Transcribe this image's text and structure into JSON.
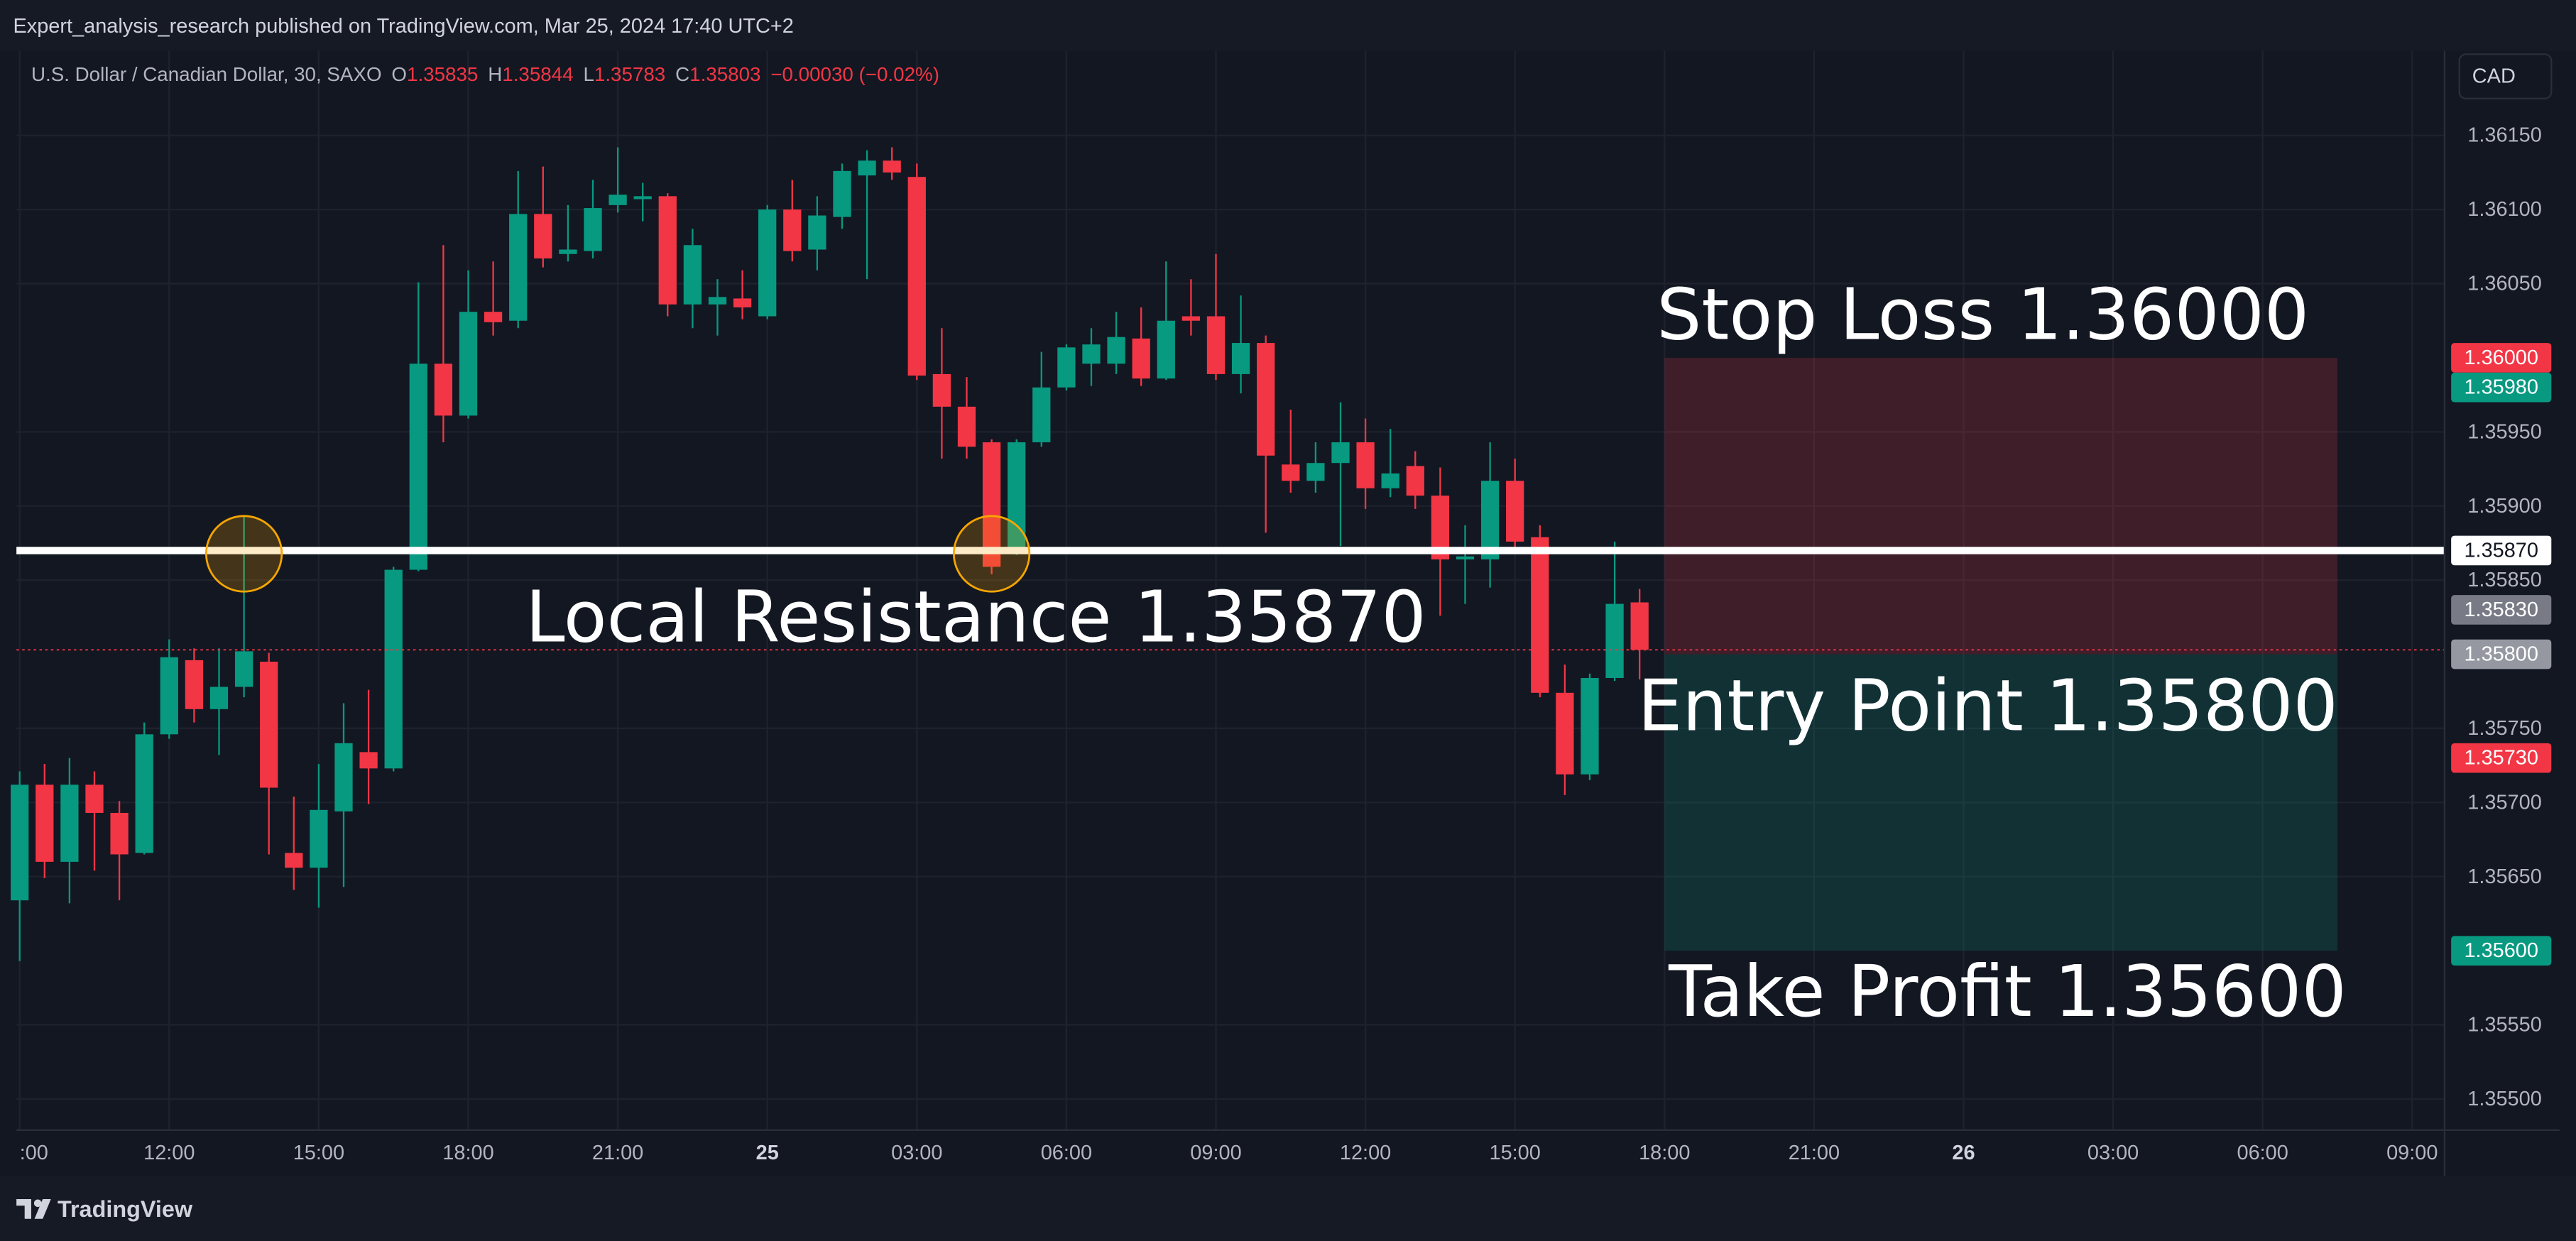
{
  "header": {
    "publisher": "Expert_analysis_research published on TradingView.com, Mar 25, 2024 17:40 UTC+2",
    "currency": "CAD",
    "brand": "TradingView"
  },
  "chart_data": {
    "type": "candlestick",
    "symbol": "U.S. Dollar / Canadian Dollar, 30, SAXO",
    "ohlc_labels": [
      "O",
      "H",
      "L",
      "C"
    ],
    "change": "−0.00030 (−0.02%)",
    "up_color": "#089981",
    "down_color": "#f23645",
    "x": [
      0,
      1,
      2,
      3,
      4,
      5,
      6,
      7,
      8,
      9,
      10,
      11,
      12,
      13,
      14,
      15,
      16,
      17,
      18,
      19,
      20,
      21,
      22,
      23,
      24,
      25,
      26,
      27,
      28,
      29,
      30,
      31,
      32,
      33,
      34,
      35,
      36,
      37,
      38,
      39,
      40,
      41,
      42,
      43,
      44,
      45,
      46,
      47,
      48,
      49,
      50,
      51,
      52,
      53,
      54,
      55,
      56,
      57,
      58,
      59,
      60,
      61,
      62,
      63,
      64,
      65
    ],
    "open": [
      1.35634,
      1.35712,
      1.3566,
      1.35712,
      1.35693,
      1.35666,
      1.35746,
      1.35796,
      1.35763,
      1.35778,
      1.35795,
      1.35666,
      1.35656,
      1.35694,
      1.35734,
      1.35723,
      1.35857,
      1.35996,
      1.35961,
      1.36031,
      1.36025,
      1.36097,
      1.3607,
      1.36072,
      1.36103,
      1.36107,
      1.36109,
      1.36036,
      1.36036,
      1.3604,
      1.36028,
      1.361,
      1.36073,
      1.36095,
      1.36123,
      1.36133,
      1.36122,
      1.35989,
      1.35967,
      1.35943,
      1.3587,
      1.35943,
      1.3598,
      1.35996,
      1.35996,
      1.36013,
      1.35986,
      1.36028,
      1.36028,
      1.35989,
      1.3601,
      1.35928,
      1.35917,
      1.35929,
      1.35943,
      1.35912,
      1.35927,
      1.35907,
      1.35864,
      1.35864,
      1.35917,
      1.35879,
      1.35774,
      1.35719,
      1.35784,
      1.35835
    ],
    "high": [
      1.35721,
      1.35726,
      1.3573,
      1.35721,
      1.35701,
      1.35754,
      1.3581,
      1.35804,
      1.35804,
      1.35893,
      1.35801,
      1.35704,
      1.35726,
      1.35767,
      1.35776,
      1.35859,
      1.36051,
      1.36076,
      1.36059,
      1.36065,
      1.36126,
      1.36129,
      1.36103,
      1.3612,
      1.36142,
      1.36118,
      1.36111,
      1.36087,
      1.36053,
      1.36059,
      1.36103,
      1.3612,
      1.36109,
      1.36131,
      1.3614,
      1.36142,
      1.36131,
      1.3602,
      1.35987,
      1.35945,
      1.35945,
      1.36004,
      1.36009,
      1.3602,
      1.36031,
      1.36034,
      1.36065,
      1.36053,
      1.3607,
      1.36042,
      1.36015,
      1.35965,
      1.35943,
      1.3597,
      1.35959,
      1.35952,
      1.35937,
      1.35926,
      1.35887,
      1.35943,
      1.35932,
      1.35887,
      1.35793,
      1.35787,
      1.35876,
      1.35844
    ],
    "low": [
      1.35593,
      1.35649,
      1.35632,
      1.35654,
      1.35634,
      1.35665,
      1.35743,
      1.35754,
      1.35732,
      1.35771,
      1.35665,
      1.35641,
      1.35629,
      1.35643,
      1.35699,
      1.35721,
      1.35856,
      1.35943,
      1.35959,
      1.36015,
      1.3602,
      1.36061,
      1.36065,
      1.36067,
      1.36098,
      1.36092,
      1.36028,
      1.3602,
      1.36015,
      1.36026,
      1.36026,
      1.36065,
      1.36059,
      1.36087,
      1.36053,
      1.3612,
      1.35985,
      1.35932,
      1.35932,
      1.35854,
      1.35867,
      1.3594,
      1.35978,
      1.35981,
      1.35989,
      1.35981,
      1.35985,
      1.36015,
      1.35985,
      1.35976,
      1.35882,
      1.35909,
      1.35909,
      1.35873,
      1.35898,
      1.35906,
      1.35898,
      1.35826,
      1.35834,
      1.35845,
      1.3587,
      1.35771,
      1.35705,
      1.35715,
      1.35782,
      1.35783
    ],
    "close": [
      1.35712,
      1.3566,
      1.35712,
      1.35693,
      1.35665,
      1.35746,
      1.35798,
      1.35763,
      1.35778,
      1.35802,
      1.3571,
      1.35656,
      1.35695,
      1.3574,
      1.35723,
      1.35857,
      1.35996,
      1.35961,
      1.36031,
      1.36024,
      1.36097,
      1.36067,
      1.36073,
      1.36101,
      1.3611,
      1.36109,
      1.36036,
      1.36076,
      1.36041,
      1.36034,
      1.361,
      1.36072,
      1.36096,
      1.36126,
      1.36133,
      1.36125,
      1.35988,
      1.35967,
      1.3594,
      1.35859,
      1.35943,
      1.3598,
      1.36007,
      1.36009,
      1.36014,
      1.35986,
      1.36025,
      1.36025,
      1.35989,
      1.3601,
      1.35934,
      1.35917,
      1.35929,
      1.35943,
      1.35912,
      1.35922,
      1.35907,
      1.35864,
      1.35866,
      1.35917,
      1.35876,
      1.35774,
      1.35719,
      1.35784,
      1.35834,
      1.35803
    ],
    "xlim": [
      -0.13,
      97.3
    ],
    "xticks": [
      {
        "value": 0,
        "label": ":00"
      },
      {
        "value": 6,
        "label": "12:00"
      },
      {
        "value": 12,
        "label": "15:00"
      },
      {
        "value": 18,
        "label": "18:00"
      },
      {
        "value": 24,
        "label": "21:00"
      },
      {
        "value": 30,
        "label": "25"
      },
      {
        "value": 36,
        "label": "03:00"
      },
      {
        "value": 42,
        "label": "06:00"
      },
      {
        "value": 48,
        "label": "09:00"
      },
      {
        "value": 54,
        "label": "12:00"
      },
      {
        "value": 60,
        "label": "15:00"
      },
      {
        "value": 66,
        "label": "18:00"
      },
      {
        "value": 72,
        "label": "21:00"
      },
      {
        "value": 78,
        "label": "26"
      },
      {
        "value": 84,
        "label": "03:00"
      },
      {
        "value": 90,
        "label": "06:00"
      },
      {
        "value": 96,
        "label": "09:00"
      }
    ],
    "ylim": [
      1.35479,
      1.36207
    ],
    "yticks": [
      {
        "value": 1.3615,
        "label": "1.36150"
      },
      {
        "value": 1.361,
        "label": "1.36100"
      },
      {
        "value": 1.3605,
        "label": "1.36050"
      },
      {
        "value": 1.3595,
        "label": "1.35950"
      },
      {
        "value": 1.359,
        "label": "1.35900"
      },
      {
        "value": 1.3585,
        "label": "1.35850"
      },
      {
        "value": 1.3575,
        "label": "1.35750"
      },
      {
        "value": 1.357,
        "label": "1.35700"
      },
      {
        "value": 1.3565,
        "label": "1.35650"
      },
      {
        "value": 1.3555,
        "label": "1.35550"
      },
      {
        "value": 1.355,
        "label": "1.35500"
      }
    ],
    "grid": true,
    "price_labels": [
      {
        "value": 1.36,
        "label": "1.36000",
        "color": "#f23645"
      },
      {
        "value": 1.3598,
        "label": "1.35980",
        "color": "#089981"
      },
      {
        "value": 1.3587,
        "label": "1.35870",
        "color": "#ffffff"
      },
      {
        "value": 1.3583,
        "label": "1.35830",
        "color": "#787b86"
      },
      {
        "value": 1.358,
        "label": "1.35800",
        "color": "#9598a1"
      },
      {
        "value": 1.3573,
        "label": "1.35730",
        "color": "#f23645"
      },
      {
        "value": 1.356,
        "label": "1.35600",
        "color": "#089981"
      }
    ],
    "lines": [
      {
        "value": 1.3587,
        "color": "#ffffff"
      }
    ],
    "position": {
      "start": 66,
      "end": 93,
      "stop": 1.36,
      "entry": 1.358,
      "target": 1.356
    },
    "annotations": [
      "Stop Loss 1.36000",
      "Local Resistance 1.35870",
      "Entry Point 1.35800",
      "Take Profit 1.35600"
    ]
  }
}
